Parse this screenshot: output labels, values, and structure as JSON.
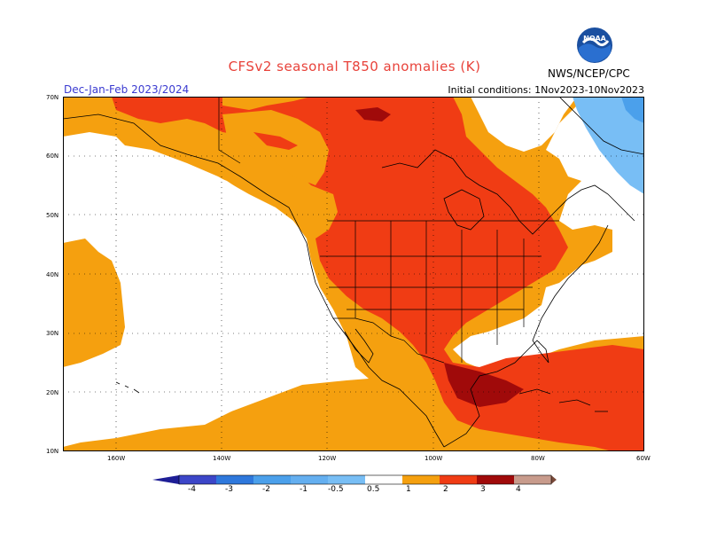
{
  "header": {
    "title": "CFSv2 seasonal T850 anomalies (K)",
    "season": "Dec-Jan-Feb 2023/2024",
    "initial_conditions": "Initial conditions: 1Nov2023-10Nov2023",
    "agency": "NWS/NCEP/CPC",
    "logo_text": "NOAA"
  },
  "map": {
    "variable": "T850 anomalies",
    "units": "K",
    "lat_labels": [
      "70N",
      "60N",
      "50N",
      "40N",
      "30N",
      "20N",
      "10N"
    ],
    "lon_labels": [
      "160W",
      "140W",
      "120W",
      "100W",
      "80W",
      "60W"
    ],
    "lat_range": [
      10,
      70
    ],
    "lon_range": [
      -170,
      -60
    ]
  },
  "colorbar": {
    "ticks": [
      "-4",
      "-3",
      "-2",
      "-1",
      "-0.5",
      "0.5",
      "1",
      "2",
      "3",
      "4"
    ],
    "colors": [
      "#1e1e96",
      "#3c46c8",
      "#2e78dc",
      "#4ba0eb",
      "#78bef5",
      "#ffffff",
      "#f5a00f",
      "#f03c14",
      "#a00a0a",
      "#c89b8c",
      "#7a4a3a"
    ]
  },
  "colors": {
    "land_line": "#000000",
    "orange": "#f5a00f",
    "red": "#f03c14",
    "light_blue": "#78bef5"
  }
}
